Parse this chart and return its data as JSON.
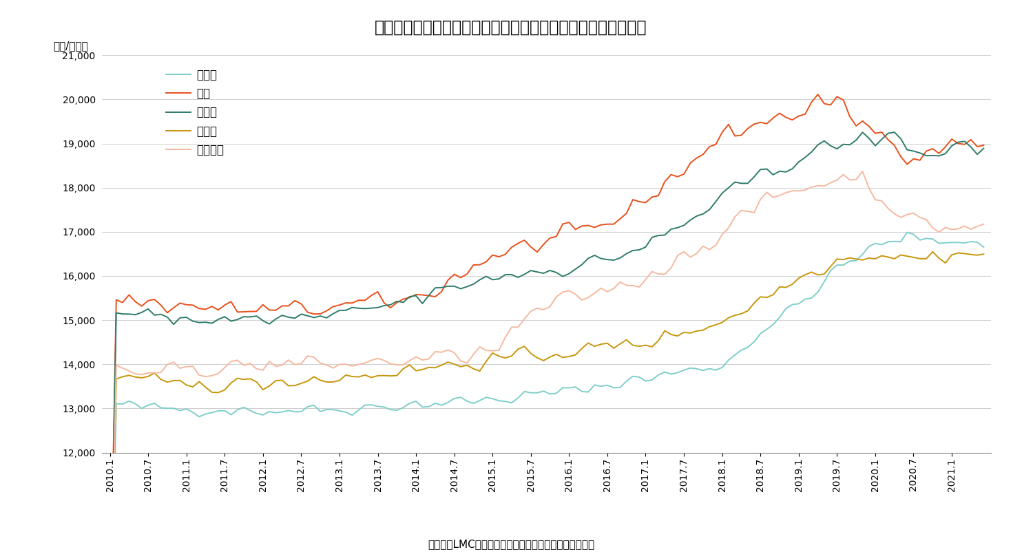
{
  "title": "図表３　東京都心５区の賃貸マンションの平均募集賃料（坪）",
  "ylabel_text": "（円/月坪）",
  "source_text": "（資料）LMCの公表資料からニッセイ基礎研究所が作成",
  "ylim": [
    12000,
    21000
  ],
  "yticks": [
    12000,
    13000,
    14000,
    15000,
    16000,
    17000,
    18000,
    19000,
    20000,
    21000
  ],
  "series_order": [
    "中央区",
    "港区",
    "渋谷区",
    "新宿区",
    "千代田区"
  ],
  "series": {
    "中央区": {
      "color": "#7ECECA",
      "linewidth": 1.4
    },
    "港区": {
      "color": "#E8501A",
      "linewidth": 1.4
    },
    "渋谷区": {
      "color": "#2E7B6B",
      "linewidth": 1.4
    },
    "新宿区": {
      "color": "#C8960C",
      "linewidth": 1.4
    },
    "千代田区": {
      "color": "#F5B8A0",
      "linewidth": 1.4
    }
  },
  "background_color": "#FFFFFF",
  "grid_color": "#C8C8C8",
  "title_fontsize": 17,
  "axis_label_fontsize": 11,
  "legend_fontsize": 12,
  "tick_label_fontsize": 10,
  "source_fontsize": 11
}
